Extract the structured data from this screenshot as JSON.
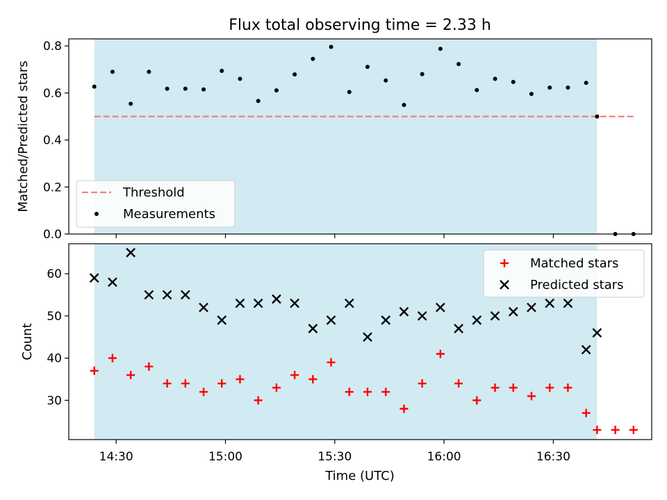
{
  "figure": {
    "title": "Flux total observing time = 2.33 h",
    "xlabel": "Time (UTC)"
  },
  "colors": {
    "shade": "#add8e6",
    "threshold": "#f08080",
    "measurement": "#000000",
    "matched": "#ff0000",
    "predicted": "#000000"
  },
  "chart_data": [
    {
      "type": "scatter",
      "panel": "top",
      "title": "Flux total observing time = 2.33 h",
      "xlabel": "",
      "ylabel": "Matched/Predicted stars",
      "x_unit": "minutes_of_day_UTC",
      "xlim": [
        "14:17",
        "16:57"
      ],
      "ylim": [
        0,
        0.83
      ],
      "yticks": [
        0.0,
        0.2,
        0.4,
        0.6,
        0.8
      ],
      "ytick_labels": [
        "0.0",
        "0.2",
        "0.4",
        "0.6",
        "0.8"
      ],
      "grid": false,
      "legend_position": "lower-left",
      "shaded_span": [
        "14:24",
        "16:42"
      ],
      "threshold": {
        "name": "Threshold",
        "y": 0.5,
        "x_range": [
          "14:24",
          "16:52"
        ]
      },
      "series": [
        {
          "name": "Measurements",
          "marker": "dot",
          "x": [
            "14:24",
            "14:29",
            "14:34",
            "14:39",
            "14:44",
            "14:49",
            "14:54",
            "14:59",
            "15:04",
            "15:09",
            "15:14",
            "15:19",
            "15:24",
            "15:29",
            "15:34",
            "15:39",
            "15:44",
            "15:49",
            "15:54",
            "15:59",
            "16:04",
            "16:09",
            "16:14",
            "16:19",
            "16:24",
            "16:29",
            "16:34",
            "16:39",
            "16:42",
            "16:47",
            "16:52"
          ],
          "y": [
            0.627,
            0.69,
            0.554,
            0.69,
            0.618,
            0.618,
            0.615,
            0.694,
            0.66,
            0.566,
            0.611,
            0.679,
            0.745,
            0.796,
            0.604,
            0.711,
            0.653,
            0.549,
            0.68,
            0.788,
            0.723,
            0.612,
            0.66,
            0.647,
            0.596,
            0.623,
            0.623,
            0.643,
            0.5,
            0.0,
            0.0
          ]
        }
      ]
    },
    {
      "type": "scatter",
      "panel": "bottom",
      "xlabel": "Time (UTC)",
      "ylabel": "Count",
      "x_unit": "minutes_of_day_UTC",
      "xlim": [
        "14:17",
        "16:57"
      ],
      "ylim": [
        20.7,
        67.1
      ],
      "yticks": [
        30,
        40,
        50,
        60
      ],
      "ytick_labels": [
        "30",
        "40",
        "50",
        "60"
      ],
      "xticks": [
        "14:30",
        "15:00",
        "15:30",
        "16:00",
        "16:30"
      ],
      "xtick_labels": [
        "14:30",
        "15:00",
        "15:30",
        "16:00",
        "16:30"
      ],
      "grid": false,
      "legend_position": "upper-right",
      "shaded_span": [
        "14:24",
        "16:42"
      ],
      "series": [
        {
          "name": "Matched stars",
          "marker": "plus",
          "x": [
            "14:24",
            "14:29",
            "14:34",
            "14:39",
            "14:44",
            "14:49",
            "14:54",
            "14:59",
            "15:04",
            "15:09",
            "15:14",
            "15:19",
            "15:24",
            "15:29",
            "15:34",
            "15:39",
            "15:44",
            "15:49",
            "15:54",
            "15:59",
            "16:04",
            "16:09",
            "16:14",
            "16:19",
            "16:24",
            "16:29",
            "16:34",
            "16:39",
            "16:42",
            "16:47",
            "16:52"
          ],
          "y": [
            37,
            40,
            36,
            38,
            34,
            34,
            32,
            34,
            35,
            30,
            33,
            36,
            35,
            39,
            32,
            32,
            32,
            28,
            34,
            41,
            34,
            30,
            33,
            33,
            31,
            33,
            33,
            27,
            23,
            23,
            23
          ]
        },
        {
          "name": "Predicted stars",
          "marker": "x",
          "x": [
            "14:24",
            "14:29",
            "14:34",
            "14:39",
            "14:44",
            "14:49",
            "14:54",
            "14:59",
            "15:04",
            "15:09",
            "15:14",
            "15:19",
            "15:24",
            "15:29",
            "15:34",
            "15:39",
            "15:44",
            "15:49",
            "15:54",
            "15:59",
            "16:04",
            "16:09",
            "16:14",
            "16:19",
            "16:24",
            "16:29",
            "16:34",
            "16:39",
            "16:42"
          ],
          "y": [
            59,
            58,
            65,
            55,
            55,
            55,
            52,
            49,
            53,
            53,
            54,
            53,
            47,
            49,
            53,
            45,
            49,
            51,
            50,
            52,
            47,
            49,
            50,
            51,
            52,
            53,
            53,
            42,
            46
          ]
        }
      ]
    }
  ]
}
